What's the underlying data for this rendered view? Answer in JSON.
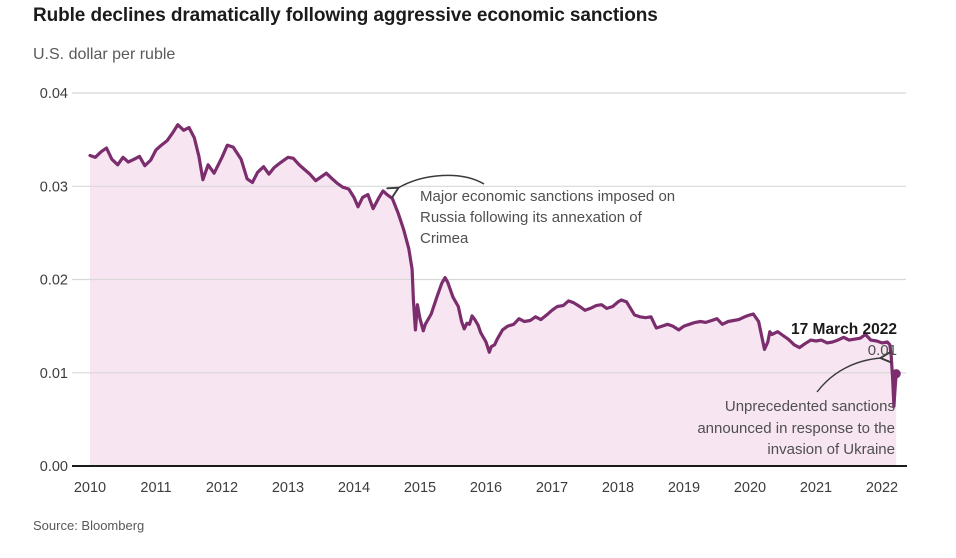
{
  "header": {
    "title": "Ruble declines dramatically following aggressive economic sanctions",
    "subtitle": "U.S. dollar per ruble"
  },
  "source": "Source: Bloomberg",
  "colors": {
    "line": "#7c2d6e",
    "area_fill": "#f7e6f2",
    "grid": "#d8d8d8",
    "axis": "#1a1a1a",
    "tick_text": "#3d3d3d",
    "annotation_text": "#4f4f4f",
    "arrow": "#3a3a3a"
  },
  "chart_data": {
    "type": "area",
    "title": "Ruble declines dramatically following aggressive economic sanctions",
    "subtitle": "U.S. dollar per ruble",
    "xlabel": "",
    "ylabel": "U.S. dollar per ruble",
    "xlim": [
      2010,
      2022.35
    ],
    "ylim": [
      0,
      0.04
    ],
    "grid": "horizontal",
    "legend": "none",
    "x_ticks": [
      2010,
      2011,
      2012,
      2013,
      2014,
      2015,
      2016,
      2017,
      2018,
      2019,
      2020,
      2021,
      2022
    ],
    "y_ticks": [
      0,
      0.01,
      0.02,
      0.03,
      0.04
    ],
    "y_tick_labels": [
      "0.00",
      "0.01",
      "0.02",
      "0.03",
      "0.04"
    ],
    "annotations": {
      "crimea": "Major economic sanctions imposed on Russia following its annexation of Crimea",
      "ukraine": "Unprecedented sanctions announced in response to the invasion of Ukraine",
      "endpoint_date": "17 March 2022",
      "endpoint_value": "0.01"
    },
    "series": [
      {
        "name": "U.S. dollar per ruble",
        "points": [
          [
            2010.0,
            0.0333
          ],
          [
            2010.08,
            0.0331
          ],
          [
            2010.17,
            0.0337
          ],
          [
            2010.25,
            0.0341
          ],
          [
            2010.33,
            0.0329
          ],
          [
            2010.42,
            0.0323
          ],
          [
            2010.5,
            0.0331
          ],
          [
            2010.58,
            0.0326
          ],
          [
            2010.67,
            0.0329
          ],
          [
            2010.75,
            0.0332
          ],
          [
            2010.83,
            0.0322
          ],
          [
            2010.92,
            0.0328
          ],
          [
            2011.0,
            0.0339
          ],
          [
            2011.08,
            0.0344
          ],
          [
            2011.17,
            0.0349
          ],
          [
            2011.25,
            0.0357
          ],
          [
            2011.33,
            0.0366
          ],
          [
            2011.42,
            0.036
          ],
          [
            2011.5,
            0.0363
          ],
          [
            2011.58,
            0.0352
          ],
          [
            2011.65,
            0.0332
          ],
          [
            2011.71,
            0.0307
          ],
          [
            2011.79,
            0.0323
          ],
          [
            2011.88,
            0.0314
          ],
          [
            2012.0,
            0.0331
          ],
          [
            2012.08,
            0.0344
          ],
          [
            2012.17,
            0.0342
          ],
          [
            2012.29,
            0.0329
          ],
          [
            2012.38,
            0.0308
          ],
          [
            2012.46,
            0.0304
          ],
          [
            2012.54,
            0.0315
          ],
          [
            2012.63,
            0.0321
          ],
          [
            2012.71,
            0.0313
          ],
          [
            2012.79,
            0.032
          ],
          [
            2012.88,
            0.0325
          ],
          [
            2013.0,
            0.0331
          ],
          [
            2013.08,
            0.033
          ],
          [
            2013.17,
            0.0323
          ],
          [
            2013.25,
            0.0318
          ],
          [
            2013.33,
            0.0313
          ],
          [
            2013.42,
            0.0306
          ],
          [
            2013.5,
            0.031
          ],
          [
            2013.58,
            0.0314
          ],
          [
            2013.67,
            0.0308
          ],
          [
            2013.75,
            0.0303
          ],
          [
            2013.83,
            0.0299
          ],
          [
            2013.92,
            0.0297
          ],
          [
            2014.0,
            0.0288
          ],
          [
            2014.06,
            0.0278
          ],
          [
            2014.13,
            0.0288
          ],
          [
            2014.21,
            0.0291
          ],
          [
            2014.29,
            0.0276
          ],
          [
            2014.38,
            0.0288
          ],
          [
            2014.44,
            0.0295
          ],
          [
            2014.5,
            0.0291
          ],
          [
            2014.58,
            0.0287
          ],
          [
            2014.67,
            0.0271
          ],
          [
            2014.75,
            0.0254
          ],
          [
            2014.83,
            0.0233
          ],
          [
            2014.88,
            0.0211
          ],
          [
            2014.9,
            0.0178
          ],
          [
            2014.93,
            0.0146
          ],
          [
            2014.96,
            0.0173
          ],
          [
            2015.0,
            0.0158
          ],
          [
            2015.05,
            0.0145
          ],
          [
            2015.08,
            0.0152
          ],
          [
            2015.17,
            0.0163
          ],
          [
            2015.25,
            0.018
          ],
          [
            2015.33,
            0.0196
          ],
          [
            2015.38,
            0.0202
          ],
          [
            2015.42,
            0.0197
          ],
          [
            2015.5,
            0.0181
          ],
          [
            2015.58,
            0.0171
          ],
          [
            2015.63,
            0.0155
          ],
          [
            2015.67,
            0.0147
          ],
          [
            2015.71,
            0.0153
          ],
          [
            2015.75,
            0.0152
          ],
          [
            2015.79,
            0.0161
          ],
          [
            2015.83,
            0.0157
          ],
          [
            2015.88,
            0.0151
          ],
          [
            2015.92,
            0.0143
          ],
          [
            2016.0,
            0.0133
          ],
          [
            2016.05,
            0.0122
          ],
          [
            2016.08,
            0.0128
          ],
          [
            2016.13,
            0.013
          ],
          [
            2016.17,
            0.0136
          ],
          [
            2016.25,
            0.0146
          ],
          [
            2016.33,
            0.015
          ],
          [
            2016.42,
            0.0152
          ],
          [
            2016.5,
            0.0158
          ],
          [
            2016.58,
            0.0155
          ],
          [
            2016.67,
            0.0156
          ],
          [
            2016.75,
            0.016
          ],
          [
            2016.83,
            0.0157
          ],
          [
            2016.92,
            0.0162
          ],
          [
            2017.0,
            0.0167
          ],
          [
            2017.08,
            0.0171
          ],
          [
            2017.17,
            0.0172
          ],
          [
            2017.25,
            0.0177
          ],
          [
            2017.33,
            0.0175
          ],
          [
            2017.42,
            0.0171
          ],
          [
            2017.5,
            0.0167
          ],
          [
            2017.58,
            0.0169
          ],
          [
            2017.67,
            0.0172
          ],
          [
            2017.75,
            0.0173
          ],
          [
            2017.83,
            0.0169
          ],
          [
            2017.92,
            0.0171
          ],
          [
            2018.0,
            0.0176
          ],
          [
            2018.05,
            0.0178
          ],
          [
            2018.13,
            0.0176
          ],
          [
            2018.25,
            0.0162
          ],
          [
            2018.33,
            0.016
          ],
          [
            2018.42,
            0.0159
          ],
          [
            2018.5,
            0.016
          ],
          [
            2018.58,
            0.0148
          ],
          [
            2018.67,
            0.015
          ],
          [
            2018.75,
            0.0152
          ],
          [
            2018.83,
            0.015
          ],
          [
            2018.92,
            0.0146
          ],
          [
            2019.0,
            0.015
          ],
          [
            2019.08,
            0.0152
          ],
          [
            2019.17,
            0.0154
          ],
          [
            2019.25,
            0.0155
          ],
          [
            2019.33,
            0.0154
          ],
          [
            2019.42,
            0.0156
          ],
          [
            2019.5,
            0.0158
          ],
          [
            2019.58,
            0.0152
          ],
          [
            2019.67,
            0.0155
          ],
          [
            2019.75,
            0.0156
          ],
          [
            2019.83,
            0.0157
          ],
          [
            2019.92,
            0.016
          ],
          [
            2020.0,
            0.0162
          ],
          [
            2020.05,
            0.0163
          ],
          [
            2020.13,
            0.0155
          ],
          [
            2020.22,
            0.0125
          ],
          [
            2020.27,
            0.0133
          ],
          [
            2020.3,
            0.0144
          ],
          [
            2020.33,
            0.0141
          ],
          [
            2020.42,
            0.0144
          ],
          [
            2020.5,
            0.014
          ],
          [
            2020.58,
            0.0136
          ],
          [
            2020.67,
            0.013
          ],
          [
            2020.75,
            0.0127
          ],
          [
            2020.83,
            0.0131
          ],
          [
            2020.92,
            0.0135
          ],
          [
            2021.0,
            0.0134
          ],
          [
            2021.08,
            0.0135
          ],
          [
            2021.17,
            0.0132
          ],
          [
            2021.25,
            0.0133
          ],
          [
            2021.33,
            0.0135
          ],
          [
            2021.42,
            0.0138
          ],
          [
            2021.5,
            0.0135
          ],
          [
            2021.58,
            0.0136
          ],
          [
            2021.67,
            0.0137
          ],
          [
            2021.75,
            0.0141
          ],
          [
            2021.83,
            0.0135
          ],
          [
            2021.92,
            0.0134
          ],
          [
            2022.0,
            0.0132
          ],
          [
            2022.08,
            0.0133
          ],
          [
            2022.12,
            0.013
          ],
          [
            2022.14,
            0.0118
          ],
          [
            2022.16,
            0.0094
          ],
          [
            2022.18,
            0.0064
          ],
          [
            2022.2,
            0.0085
          ],
          [
            2022.215,
            0.0099
          ]
        ],
        "endpoint": [
          2022.215,
          0.0099
        ]
      }
    ]
  }
}
